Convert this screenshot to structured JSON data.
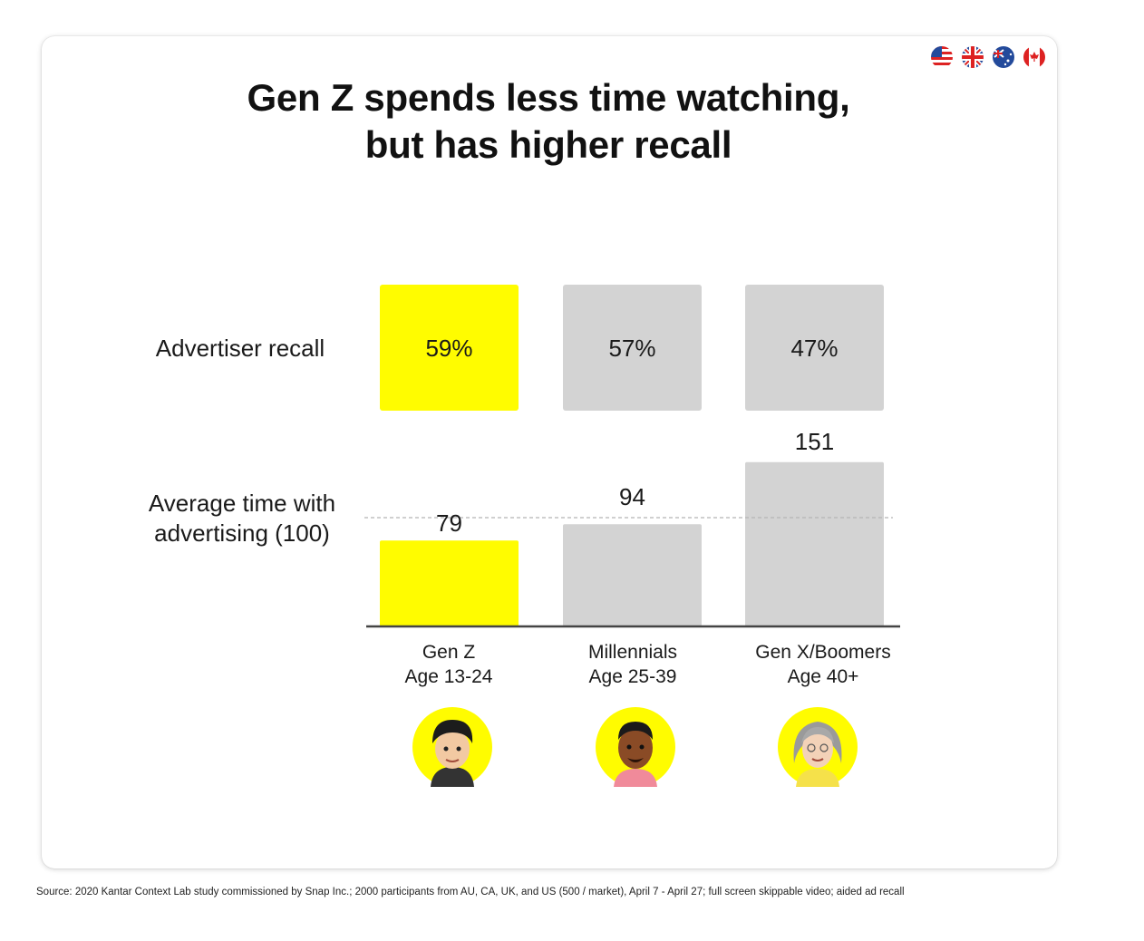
{
  "title_line1": "Gen Z spends less time watching,",
  "title_line2": "but has higher recall",
  "row_labels": {
    "recall": "Advertiser recall",
    "time_line1": "Average time with",
    "time_line2": "advertising (100)"
  },
  "categories": [
    {
      "name": "Gen Z",
      "age": "Age 13-24",
      "avatar": "gen-z-avatar-icon"
    },
    {
      "name": "Millennials",
      "age": "Age 25-39",
      "avatar": "millennial-avatar-icon"
    },
    {
      "name": "Gen X/Boomers",
      "age": "Age 40+",
      "avatar": "boomer-avatar-icon"
    }
  ],
  "flags": [
    "us-flag-icon",
    "uk-flag-icon",
    "australia-flag-icon",
    "canada-flag-icon"
  ],
  "colors": {
    "highlight": "#FFFC00",
    "neutral": "#D3D3D3",
    "axis": "#444444",
    "avatar_bg": "#FFFC00"
  },
  "chart_data": {
    "type": "bar",
    "categories": [
      "Gen Z\nAge 13-24",
      "Millennials\nAge 25-39",
      "Gen X/Boomers\nAge 40+"
    ],
    "recall": {
      "name": "Advertiser recall",
      "values": [
        59,
        57,
        47
      ],
      "labels": [
        "59%",
        "57%",
        "47%"
      ]
    },
    "time_index": {
      "name": "Average time with advertising (100)",
      "values": [
        79,
        94,
        151
      ],
      "labels": [
        "79",
        "94",
        "151"
      ],
      "baseline": 100
    },
    "highlight_index": 0
  },
  "source": "Source: 2020 Kantar Context Lab study commissioned by Snap Inc.; 2000 participants from AU, CA, UK, and US (500 / market), April 7 - April 27; full screen skippable video; aided ad recall"
}
